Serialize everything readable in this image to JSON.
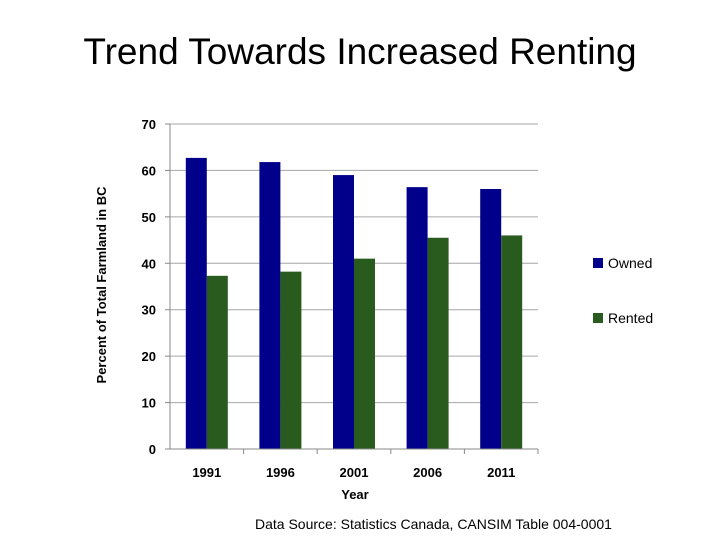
{
  "title": "Trend Towards Increased Renting",
  "source": "Data Source: Statistics Canada, CANSIM Table 004-0001",
  "chart_data": {
    "type": "bar",
    "title": "Trend Towards Increased Renting",
    "xlabel": "Year",
    "ylabel": "Percent of Total Farmland in BC",
    "ylim": [
      0,
      70
    ],
    "yticks": [
      0,
      10,
      20,
      30,
      40,
      50,
      60,
      70
    ],
    "categories": [
      "1991",
      "1996",
      "2001",
      "2006",
      "2011"
    ],
    "series": [
      {
        "name": "Owned",
        "color": "#00008b",
        "values": [
          62.7,
          61.8,
          59.0,
          56.4,
          56.0
        ]
      },
      {
        "name": "Rented",
        "color": "#2a5b1e",
        "values": [
          37.3,
          38.2,
          41.0,
          45.5,
          46.0
        ]
      }
    ],
    "grid": true,
    "legend_position": "right"
  }
}
